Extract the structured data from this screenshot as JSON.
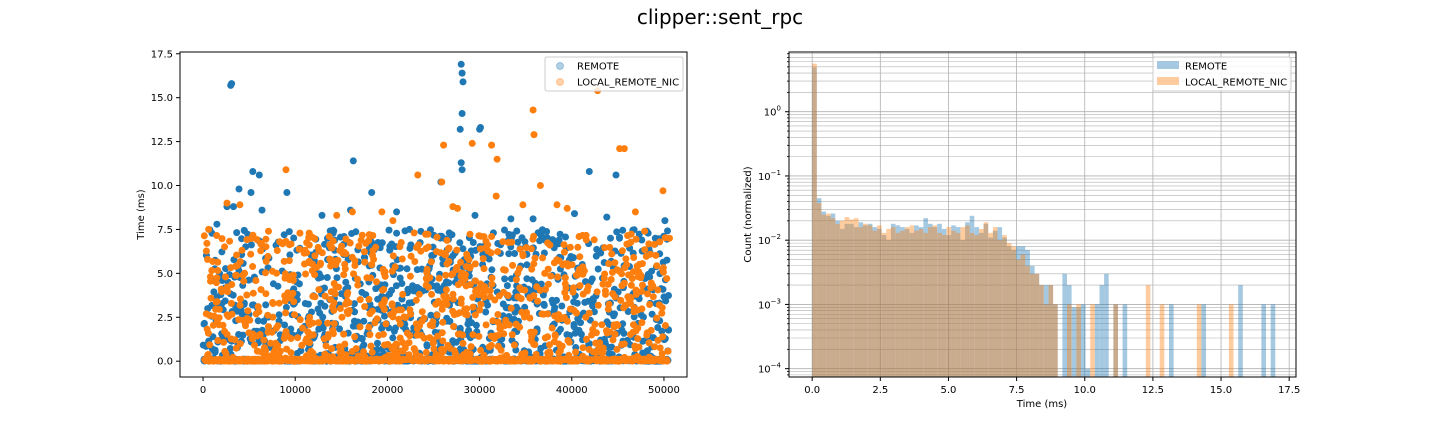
{
  "figure": {
    "title": "clipper::sent_rpc"
  },
  "colors": {
    "remote": "#1f77b4",
    "local": "#ff7f0e"
  },
  "chart_data": [
    {
      "type": "scatter",
      "title": "",
      "xlabel": "",
      "ylabel": "Time (ms)",
      "xlim": [
        -2500,
        52500
      ],
      "ylim": [
        -0.9,
        17.6
      ],
      "xticks": [
        0,
        10000,
        20000,
        30000,
        40000,
        50000
      ],
      "xtick_labels": [
        "0",
        "10000",
        "20000",
        "30000",
        "40000",
        "50000"
      ],
      "yticks": [
        0.0,
        2.5,
        5.0,
        7.5,
        10.0,
        12.5,
        15.0,
        17.5
      ],
      "ytick_labels": [
        "0.0",
        "2.5",
        "5.0",
        "7.5",
        "10.0",
        "12.5",
        "15.0",
        "17.5"
      ],
      "legend": {
        "placement": "upper-right",
        "entries": [
          "REMOTE",
          "LOCAL_REMOTE_NIC"
        ]
      },
      "grid": false,
      "series": [
        {
          "name": "REMOTE",
          "points": [
            [
              3000,
              15.7
            ],
            [
              3100,
              15.8
            ],
            [
              28000,
              16.9
            ],
            [
              28100,
              16.4
            ],
            [
              28200,
              15.9
            ],
            [
              28100,
              14.1
            ],
            [
              27900,
              13.2
            ],
            [
              30100,
              13.3
            ],
            [
              30000,
              13.2
            ],
            [
              28000,
              11.3
            ],
            [
              28100,
              10.9
            ],
            [
              16300,
              11.4
            ],
            [
              5400,
              10.8
            ],
            [
              6100,
              10.6
            ],
            [
              3900,
              9.8
            ],
            [
              5200,
              9.6
            ],
            [
              9100,
              9.6
            ],
            [
              18300,
              9.6
            ],
            [
              25800,
              10.2
            ],
            [
              41900,
              10.8
            ],
            [
              44800,
              10.6
            ],
            [
              3300,
              8.8
            ],
            [
              2600,
              8.8
            ],
            [
              6400,
              8.6
            ],
            [
              12900,
              8.3
            ],
            [
              16000,
              8.6
            ],
            [
              21000,
              8.5
            ],
            [
              29500,
              8.3
            ],
            [
              33400,
              8.1
            ],
            [
              35800,
              8.1
            ],
            [
              40300,
              8.4
            ],
            [
              43800,
              8.2
            ],
            [
              50100,
              8.0
            ],
            [
              1500,
              7.8
            ],
            [
              8800,
              7.2
            ],
            [
              13500,
              7.0
            ],
            [
              22400,
              7.5
            ],
            [
              26700,
              7.3
            ],
            [
              31500,
              7.3
            ],
            [
              37100,
              7.0
            ],
            [
              44200,
              7.0
            ],
            [
              47600,
              6.9
            ]
          ],
          "bulk": {
            "x_range": [
              0,
              50500
            ],
            "y_range": [
              0,
              7.5
            ],
            "count": 900,
            "seed": 11
          },
          "baseline": {
            "x_range": [
              0,
              50500
            ],
            "y": 0.0,
            "count": 700,
            "seed": 13
          }
        },
        {
          "name": "LOCAL_REMOTE_NIC",
          "points": [
            [
              42800,
              15.4
            ],
            [
              35800,
              14.3
            ],
            [
              35900,
              12.9
            ],
            [
              26100,
              12.3
            ],
            [
              29200,
              12.4
            ],
            [
              31300,
              12.3
            ],
            [
              31900,
              11.5
            ],
            [
              45200,
              12.1
            ],
            [
              45700,
              12.1
            ],
            [
              9000,
              10.9
            ],
            [
              23300,
              10.6
            ],
            [
              25900,
              10.2
            ],
            [
              36600,
              10.0
            ],
            [
              49900,
              9.7
            ],
            [
              2600,
              9.0
            ],
            [
              4000,
              8.9
            ],
            [
              14500,
              8.3
            ],
            [
              16200,
              8.5
            ],
            [
              19400,
              8.5
            ],
            [
              20600,
              8.0
            ],
            [
              27100,
              8.8
            ],
            [
              27600,
              8.7
            ],
            [
              31800,
              9.4
            ],
            [
              34700,
              8.9
            ],
            [
              38400,
              8.9
            ],
            [
              39500,
              8.7
            ],
            [
              46900,
              8.5
            ],
            [
              600,
              7.5
            ],
            [
              7100,
              7.4
            ],
            [
              13700,
              7.1
            ],
            [
              22900,
              7.3
            ],
            [
              31300,
              7.1
            ],
            [
              40800,
              7.1
            ],
            [
              47900,
              7.4
            ],
            [
              50600,
              7.0
            ]
          ],
          "bulk": {
            "x_range": [
              0,
              50500
            ],
            "y_range": [
              0,
              7.3
            ],
            "count": 900,
            "seed": 29
          },
          "baseline": {
            "x_range": [
              0,
              50500
            ],
            "y": 0.0,
            "count": 700,
            "seed": 31
          }
        }
      ]
    },
    {
      "type": "histogram",
      "title": "",
      "xlabel": "Time (ms)",
      "ylabel": "Count (normalized)",
      "xlim": [
        -0.85,
        17.75
      ],
      "ylim_log10": [
        -4.13,
        0.93
      ],
      "scale_y": "log",
      "xticks": [
        0.0,
        2.5,
        5.0,
        7.5,
        10.0,
        12.5,
        15.0,
        17.5
      ],
      "xtick_labels": [
        "0.0",
        "2.5",
        "5.0",
        "7.5",
        "10.0",
        "12.5",
        "15.0",
        "17.5"
      ],
      "yticks_major": [
        -4,
        -3,
        -2,
        -1,
        0
      ],
      "ytick_label_mantissa": "10",
      "legend": {
        "placement": "upper-right",
        "entries": [
          "REMOTE",
          "LOCAL_REMOTE_NIC"
        ]
      },
      "grid": true,
      "bin_width": 0.17,
      "series": [
        {
          "name": "REMOTE",
          "bins": [
            [
              0.0,
              4.9
            ],
            [
              0.17,
              0.045
            ],
            [
              0.34,
              0.028
            ],
            [
              0.51,
              0.024
            ],
            [
              0.68,
              0.026
            ],
            [
              0.85,
              0.02
            ],
            [
              1.02,
              0.015
            ],
            [
              1.19,
              0.018
            ],
            [
              1.36,
              0.018
            ],
            [
              1.53,
              0.016
            ],
            [
              1.7,
              0.019
            ],
            [
              1.87,
              0.017
            ],
            [
              2.04,
              0.018
            ],
            [
              2.21,
              0.016
            ],
            [
              2.38,
              0.015
            ],
            [
              2.55,
              0.012
            ],
            [
              2.72,
              0.01
            ],
            [
              2.89,
              0.018
            ],
            [
              3.06,
              0.017
            ],
            [
              3.23,
              0.016
            ],
            [
              3.4,
              0.015
            ],
            [
              3.57,
              0.013
            ],
            [
              3.74,
              0.017
            ],
            [
              3.91,
              0.016
            ],
            [
              4.08,
              0.022
            ],
            [
              4.25,
              0.018
            ],
            [
              4.42,
              0.016
            ],
            [
              4.59,
              0.018
            ],
            [
              4.76,
              0.015
            ],
            [
              4.93,
              0.012
            ],
            [
              5.1,
              0.017
            ],
            [
              5.27,
              0.016
            ],
            [
              5.44,
              0.01
            ],
            [
              5.61,
              0.019
            ],
            [
              5.78,
              0.024
            ],
            [
              5.95,
              0.016
            ],
            [
              6.12,
              0.013
            ],
            [
              6.29,
              0.018
            ],
            [
              6.46,
              0.011
            ],
            [
              6.63,
              0.014
            ],
            [
              6.8,
              0.016
            ],
            [
              6.97,
              0.011
            ],
            [
              7.14,
              0.008
            ],
            [
              7.31,
              0.007
            ],
            [
              7.48,
              0.008
            ],
            [
              7.65,
              0.008
            ],
            [
              7.82,
              0.007
            ],
            [
              7.99,
              0.004
            ],
            [
              8.16,
              0.003
            ],
            [
              8.33,
              0.002
            ],
            [
              8.5,
              0.002
            ],
            [
              8.67,
              0.002
            ],
            [
              8.84,
              0.001
            ],
            [
              9.18,
              0.003
            ],
            [
              9.35,
              0.002
            ],
            [
              9.52,
              0.0009
            ],
            [
              9.69,
              0.0009
            ],
            [
              9.86,
              0.001
            ],
            [
              10.03,
              0.0001
            ],
            [
              10.37,
              0.001
            ],
            [
              10.54,
              0.002
            ],
            [
              10.71,
              0.003
            ],
            [
              11.05,
              0.001
            ],
            [
              11.39,
              0.001
            ],
            [
              13.09,
              0.001
            ],
            [
              14.28,
              0.001
            ],
            [
              15.63,
              0.002
            ],
            [
              16.48,
              0.001
            ],
            [
              16.82,
              0.001
            ]
          ]
        },
        {
          "name": "LOCAL_REMOTE_NIC",
          "bins": [
            [
              0.0,
              5.6
            ],
            [
              0.17,
              0.038
            ],
            [
              0.34,
              0.025
            ],
            [
              0.51,
              0.026
            ],
            [
              0.68,
              0.022
            ],
            [
              0.85,
              0.018
            ],
            [
              1.02,
              0.02
            ],
            [
              1.19,
              0.023
            ],
            [
              1.36,
              0.021
            ],
            [
              1.53,
              0.022
            ],
            [
              1.7,
              0.016
            ],
            [
              1.87,
              0.018
            ],
            [
              2.04,
              0.017
            ],
            [
              2.21,
              0.014
            ],
            [
              2.38,
              0.017
            ],
            [
              2.55,
              0.013
            ],
            [
              2.72,
              0.015
            ],
            [
              2.89,
              0.016
            ],
            [
              3.06,
              0.013
            ],
            [
              3.23,
              0.014
            ],
            [
              3.4,
              0.016
            ],
            [
              3.57,
              0.017
            ],
            [
              3.74,
              0.014
            ],
            [
              3.91,
              0.015
            ],
            [
              4.08,
              0.013
            ],
            [
              4.25,
              0.016
            ],
            [
              4.42,
              0.017
            ],
            [
              4.59,
              0.013
            ],
            [
              4.76,
              0.012
            ],
            [
              4.93,
              0.016
            ],
            [
              5.1,
              0.014
            ],
            [
              5.27,
              0.013
            ],
            [
              5.44,
              0.016
            ],
            [
              5.61,
              0.017
            ],
            [
              5.78,
              0.013
            ],
            [
              5.95,
              0.012
            ],
            [
              6.12,
              0.015
            ],
            [
              6.29,
              0.019
            ],
            [
              6.46,
              0.013
            ],
            [
              6.63,
              0.016
            ],
            [
              6.8,
              0.01
            ],
            [
              6.97,
              0.012
            ],
            [
              7.14,
              0.009
            ],
            [
              7.31,
              0.008
            ],
            [
              7.48,
              0.005
            ],
            [
              7.65,
              0.006
            ],
            [
              7.82,
              0.004
            ],
            [
              7.99,
              0.003
            ],
            [
              8.16,
              0.003
            ],
            [
              8.33,
              0.002
            ],
            [
              8.5,
              0.001
            ],
            [
              8.67,
              0.002
            ],
            [
              8.84,
              0.001
            ],
            [
              9.35,
              0.001
            ],
            [
              9.69,
              0.001
            ],
            [
              10.2,
              0.001
            ],
            [
              11.05,
              0.001
            ],
            [
              12.24,
              0.002
            ],
            [
              12.75,
              0.001
            ],
            [
              14.11,
              0.001
            ],
            [
              15.29,
              0.001
            ]
          ]
        }
      ]
    }
  ]
}
